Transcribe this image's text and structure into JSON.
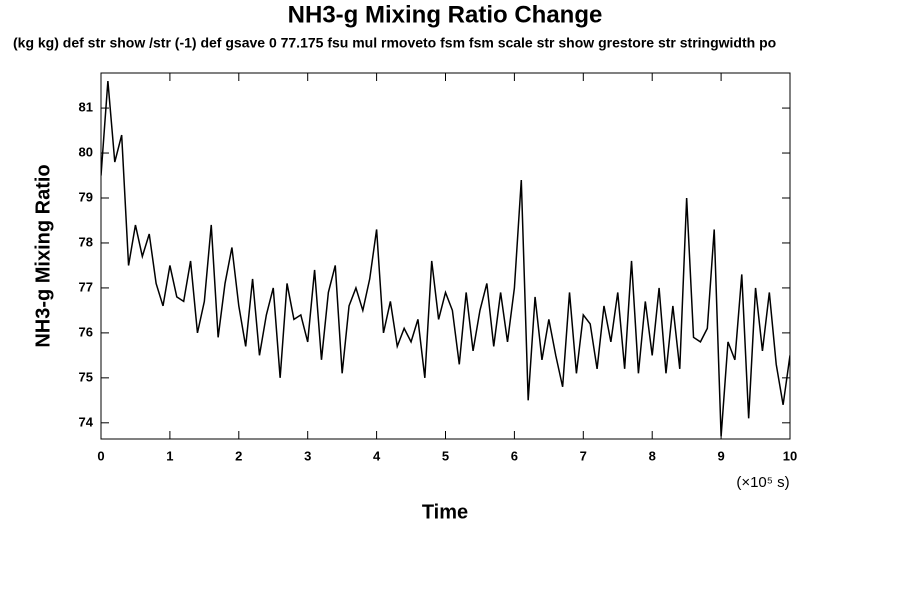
{
  "chart_data": {
    "type": "line",
    "title": "NH3-g Mixing Ratio Change",
    "subtitle": "(kg kg) def str show /str (-1) def gsave 0 77.175 fsu mul rmoveto fsm fsm scale str show grestore str stringwidth po",
    "x_label": "Time",
    "x_unit": "(×10⁵ s)",
    "y_label": "NH3-g Mixing Ratio",
    "color": "#000000",
    "x": [
      0.0,
      0.1,
      0.2,
      0.3,
      0.4,
      0.5,
      0.6,
      0.7,
      0.8,
      0.9,
      1.0,
      1.1,
      1.2,
      1.3,
      1.4,
      1.5,
      1.6,
      1.7,
      1.8,
      1.9,
      2.0,
      2.1,
      2.2,
      2.3,
      2.4,
      2.5,
      2.6,
      2.7,
      2.8,
      2.9,
      3.0,
      3.1,
      3.2,
      3.3,
      3.4,
      3.5,
      3.6,
      3.7,
      3.8,
      3.9,
      4.0,
      4.1,
      4.2,
      4.3,
      4.4,
      4.5,
      4.6,
      4.7,
      4.8,
      4.9,
      5.0,
      5.1,
      5.2,
      5.3,
      5.4,
      5.5,
      5.6,
      5.7,
      5.8,
      5.9,
      6.0,
      6.1,
      6.2,
      6.3,
      6.4,
      6.5,
      6.6,
      6.7,
      6.8,
      6.9,
      7.0,
      7.1,
      7.2,
      7.3,
      7.4,
      7.5,
      7.6,
      7.7,
      7.8,
      7.9,
      8.0,
      8.1,
      8.2,
      8.3,
      8.4,
      8.5,
      8.6,
      8.7,
      8.8,
      8.9,
      9.0,
      9.1,
      9.2,
      9.3,
      9.4,
      9.5,
      9.6,
      9.7,
      9.8,
      9.9,
      10.0
    ],
    "values": [
      79.5,
      81.6,
      79.8,
      80.4,
      77.5,
      78.4,
      77.7,
      78.2,
      77.1,
      76.6,
      77.5,
      76.8,
      76.7,
      77.6,
      76.0,
      76.7,
      78.4,
      75.9,
      77.1,
      77.9,
      76.6,
      75.7,
      77.2,
      75.5,
      76.4,
      77.0,
      75.0,
      77.1,
      76.3,
      76.4,
      75.8,
      77.4,
      75.4,
      76.9,
      77.5,
      75.1,
      76.6,
      77.0,
      76.5,
      77.2,
      78.3,
      76.0,
      76.7,
      75.7,
      76.1,
      75.8,
      76.3,
      75.0,
      77.6,
      76.3,
      76.9,
      76.5,
      75.3,
      76.9,
      75.6,
      76.5,
      77.1,
      75.7,
      76.9,
      75.8,
      77.0,
      79.4,
      74.5,
      76.8,
      75.4,
      76.3,
      75.5,
      74.8,
      76.9,
      75.1,
      76.4,
      76.2,
      75.2,
      76.6,
      75.8,
      76.9,
      75.2,
      77.6,
      75.1,
      76.7,
      75.5,
      77.0,
      75.1,
      76.6,
      75.2,
      79.0,
      75.9,
      75.8,
      76.1,
      78.3,
      73.7,
      75.8,
      75.4,
      77.3,
      74.1,
      77.0,
      75.6,
      76.9,
      75.3,
      74.4,
      75.5
    ],
    "xlim": [
      0,
      10
    ],
    "xticks": [
      0,
      1,
      2,
      3,
      4,
      5,
      6,
      7,
      8,
      9,
      10
    ],
    "ylim": [
      73.64,
      81.78
    ],
    "yticks": [
      74,
      75,
      76,
      77,
      78,
      79,
      80,
      81
    ]
  }
}
